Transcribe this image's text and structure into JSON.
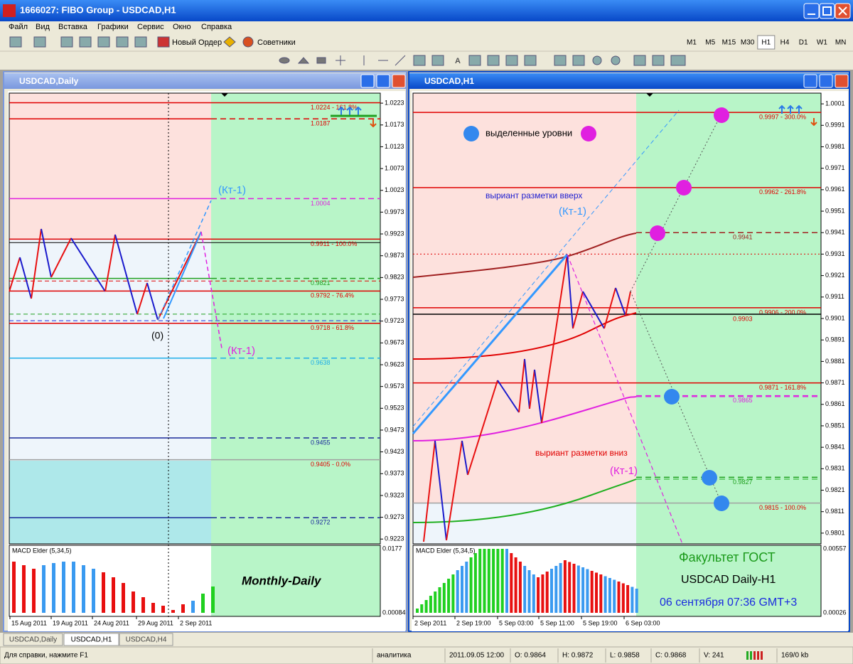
{
  "window_title": "1666027: FIBO Group - USDCAD,H1",
  "menu": [
    "Файл",
    "Вид",
    "Вставка",
    "Графики",
    "Сервис",
    "Окно",
    "Справка"
  ],
  "toolbar": {
    "new_order": "Новый Ордер",
    "experts": "Советники",
    "timeframes": [
      "M1",
      "M5",
      "M15",
      "M30",
      "H1",
      "H4",
      "D1",
      "W1",
      "MN"
    ],
    "active_timeframe": 4
  },
  "charts": [
    {
      "title": "USDCAD,Daily",
      "ylim": [
        0.9212,
        1.0246
      ],
      "yticks": [
        1.0223,
        1.0173,
        1.0123,
        1.0073,
        1.0023,
        0.9973,
        0.9923,
        0.9873,
        0.9823,
        0.9773,
        0.9723,
        0.9673,
        0.9623,
        0.9573,
        0.9523,
        0.9473,
        0.9423,
        0.9373,
        0.9323,
        0.9273,
        0.9223
      ],
      "levels": [
        {
          "value": 1.0224,
          "label": "1.0224 - 161.8%",
          "color": "#e00000",
          "style": "solid"
        },
        {
          "value": 1.0187,
          "label": "1.0187",
          "color": "#e00000",
          "style": "split"
        },
        {
          "value": 1.0004,
          "label": "1.0004",
          "color": "#e020e0",
          "style": "split"
        },
        {
          "value": 0.9911,
          "label": "0.9911 - 100.0%",
          "color": "#e00000",
          "style": "solid"
        },
        {
          "value": 0.9821,
          "label": "0.9821",
          "color": "#20a020",
          "style": "split"
        },
        {
          "value": 0.9792,
          "label": "0.9792 - 76.4%",
          "color": "#e00000",
          "style": "solid"
        },
        {
          "value": 0.9718,
          "label": "0.9718 - 61.8%",
          "color": "#e00000",
          "style": "solid"
        },
        {
          "value": 0.9638,
          "label": "0.9638",
          "color": "#1eaee8",
          "style": "split"
        },
        {
          "value": 0.9455,
          "label": "0.9455",
          "color": "#1a2a9a",
          "style": "split"
        },
        {
          "value": 0.9405,
          "label": "0.9405 - 0.0%",
          "color": "#a0a0a0",
          "label_color": "#e00000",
          "style": "solid"
        },
        {
          "value": 0.9272,
          "label": "0.9272",
          "color": "#1a2a9a",
          "style": "split"
        }
      ],
      "axis_markers": [
        {
          "value": 0.9903,
          "color": "#000000",
          "style": "solid"
        },
        {
          "value": 0.9815,
          "color": "#e00000",
          "style": "dashed"
        },
        {
          "value": 0.9739,
          "color": "#20a020",
          "style": "dashed"
        },
        {
          "value": 0.9724,
          "color": "#1a2adf",
          "style": "dashed"
        }
      ],
      "annotations": [
        {
          "text": "(Кт-1)",
          "color": "#3399ff"
        },
        {
          "text": "(Кт-1)",
          "color": "#e020e0"
        },
        {
          "text": "(0)",
          "color": "#000000"
        },
        {
          "text": "Monthly-Daily",
          "color": "#000000"
        }
      ],
      "macd": {
        "label": "MACD Elder (5,34,5)",
        "scale": [
          "0.0177",
          "0.00084"
        ]
      },
      "dates": [
        "15 Aug 2011",
        "19 Aug 2011",
        "24 Aug 2011",
        "29 Aug 2011",
        "2 Sep 2011"
      ]
    },
    {
      "title": "USDCAD,H1",
      "ylim": [
        0.9796,
        1.0006
      ],
      "yticks": [
        1.0001,
        0.9991,
        0.9981,
        0.9971,
        0.9961,
        0.9951,
        0.9941,
        0.9931,
        0.9921,
        0.9911,
        0.9901,
        0.9891,
        0.9881,
        0.9871,
        0.9861,
        0.9851,
        0.9841,
        0.9831,
        0.9821,
        0.9811,
        0.9801
      ],
      "levels": [
        {
          "value": 0.9997,
          "label": "0.9997 - 300.0%",
          "color": "#e00000",
          "style": "solid"
        },
        {
          "value": 0.9962,
          "label": "0.9962 - 261.8%",
          "color": "#e00000",
          "style": "solid"
        },
        {
          "value": 0.9941,
          "label": "0.9941",
          "color": "#a02020",
          "style": "right"
        },
        {
          "value": 0.9906,
          "label": "0.9906 - 200.0%",
          "color": "#e00000",
          "style": "solid"
        },
        {
          "value": 0.9903,
          "label": "0.9903",
          "color": "#000000",
          "label_color": "#e00000",
          "style": "solid"
        },
        {
          "value": 0.9871,
          "label": "0.9871 - 161.8%",
          "color": "#e00000",
          "style": "solid"
        },
        {
          "value": 0.9865,
          "label": "0.9865",
          "color": "#e020e0",
          "style": "right"
        },
        {
          "value": 0.9827,
          "label": "0.9827",
          "color": "#20a020",
          "style": "right"
        },
        {
          "value": 0.9815,
          "label": "0.9815 - 100.0%",
          "color": "#a0a0a0",
          "label_color": "#e00000",
          "style": "solid"
        }
      ],
      "axis_markers": [
        {
          "value": 0.9931,
          "color": "#e00000",
          "style": "dotted"
        },
        {
          "value": 0.9903,
          "color": "#000000",
          "style": "solid"
        }
      ],
      "annotations": [
        {
          "text": "выделенные уровни",
          "color": "#000000"
        },
        {
          "text": "выриант разметки вверх",
          "color": "#2020d0"
        },
        {
          "text": "(Кт-1)",
          "color": "#3399ff"
        },
        {
          "text": "выриант разметки вниз",
          "color": "#e00000"
        },
        {
          "text": "(Кт-1)",
          "color": "#e020e0"
        },
        {
          "text": "Факультет ГОСТ",
          "color": "#1a9a1a"
        },
        {
          "text": "USDCAD Daily-H1",
          "color": "#000000"
        },
        {
          "text": "06 сентября 07:36 GMT+3",
          "color": "#1a2adf"
        }
      ],
      "macd": {
        "label": "MACD Elder (5,34,5)",
        "scale": [
          "0.00557",
          "0.00026"
        ]
      },
      "dates": [
        "2 Sep 2011",
        "2 Sep 19:00",
        "5 Sep 03:00",
        "5 Sep 11:00",
        "5 Sep 19:00",
        "6 Sep 03:00"
      ]
    }
  ],
  "tabs": [
    "USDCAD,Daily",
    "USDCAD,H1",
    "USDCAD,H4"
  ],
  "active_tab": 1,
  "status": [
    "Для справки, нажмите F1",
    "аналитика",
    "2011.09.05 12:00",
    "O: 0.9864",
    "H: 0.9872",
    "L: 0.9858",
    "C: 0.9868",
    "V: 241",
    "169/0 kb"
  ]
}
